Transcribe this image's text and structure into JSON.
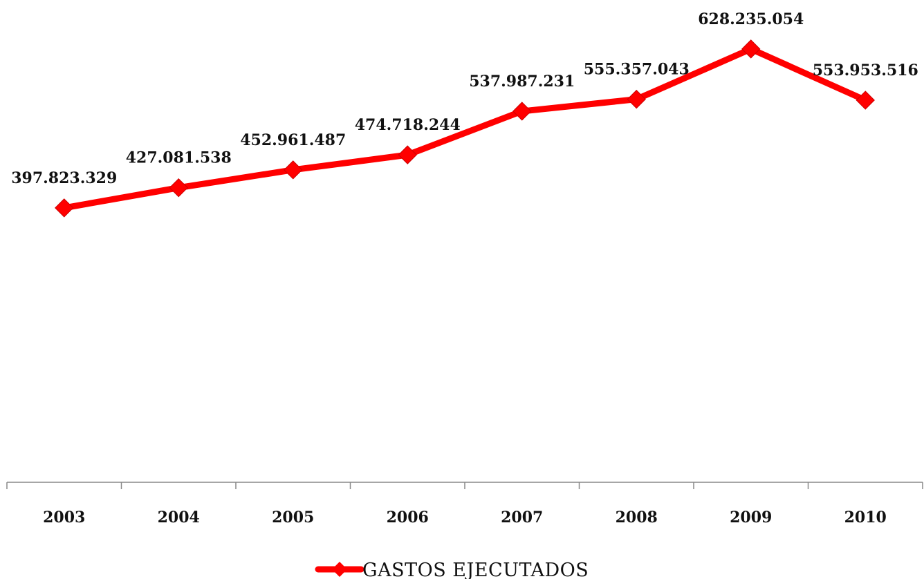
{
  "chart_data": {
    "type": "line",
    "title": "",
    "xlabel": "",
    "ylabel": "",
    "categories": [
      "2003",
      "2004",
      "2005",
      "2006",
      "2007",
      "2008",
      "2009",
      "2010"
    ],
    "series": [
      {
        "name": "GASTOS EJECUTADOS",
        "values": [
          397823329,
          427081538,
          452961487,
          474718244,
          537987231,
          555357043,
          628235054,
          553953516
        ],
        "labels": [
          "397.823.329",
          "427.081.538",
          "452.961.487",
          "474.718.244",
          "537.987.231",
          "555.357.043",
          "628.235.054",
          "553.953.516"
        ],
        "color": "#ff0000",
        "marker": "diamond"
      }
    ],
    "ylim": [
      0,
      700000000
    ],
    "grid": false,
    "legend_position": "bottom-center",
    "axis_color": "#888888",
    "text_color": "#111111"
  }
}
